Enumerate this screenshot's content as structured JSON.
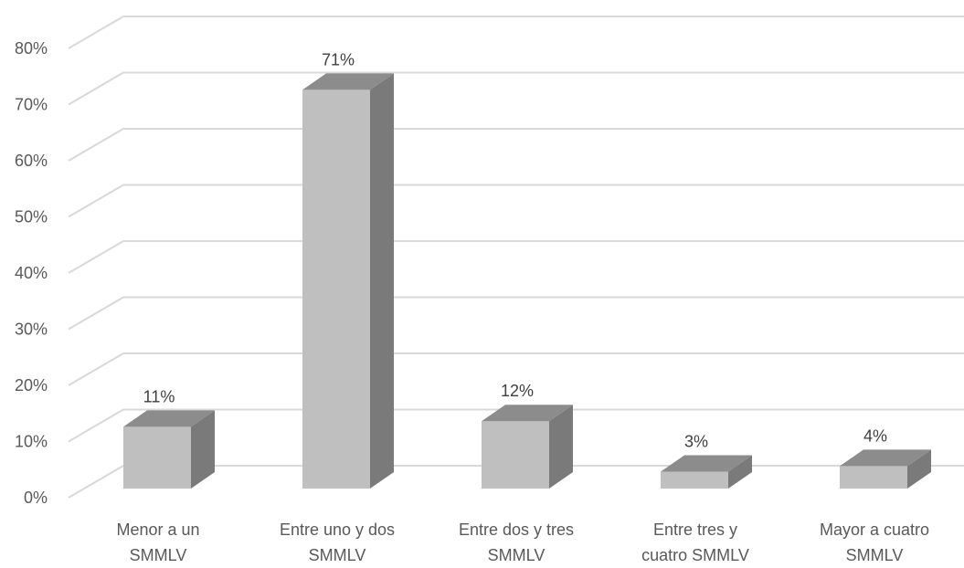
{
  "chart_data": {
    "type": "bar",
    "categories": [
      [
        "Menor a un",
        "SMMLV"
      ],
      [
        "Entre uno y dos",
        "SMMLV"
      ],
      [
        "Entre dos y tres",
        "SMMLV"
      ],
      [
        "Entre tres y",
        "cuatro SMMLV"
      ],
      [
        "Mayor a cuatro",
        "SMMLV"
      ]
    ],
    "values": [
      11,
      71,
      12,
      3,
      4
    ],
    "data_labels": [
      "11%",
      "71%",
      "12%",
      "3%",
      "4%"
    ],
    "y_ticks": [
      "0%",
      "10%",
      "20%",
      "30%",
      "40%",
      "50%",
      "60%",
      "70%",
      "80%"
    ],
    "ylim": [
      0,
      80
    ],
    "style": "3d-column",
    "grid": true,
    "colors": {
      "front": "#bfbfbf",
      "top": "#8c8c8c",
      "side": "#7a7a7a",
      "grid": "#d9d9d9"
    }
  }
}
